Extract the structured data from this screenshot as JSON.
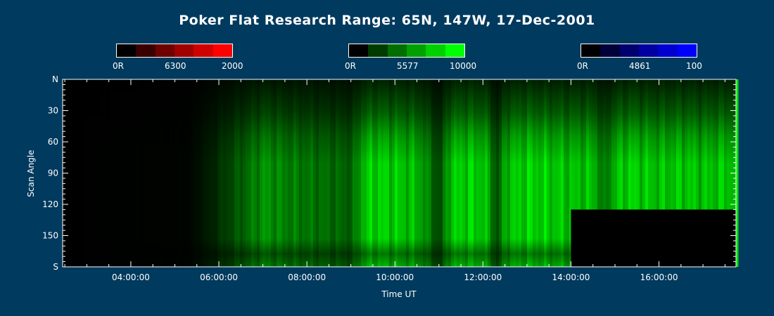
{
  "title": "Poker Flat Research Range: 65N, 147W, 17-Dec-2001",
  "colorbars": [
    {
      "name": "red",
      "wavelength": "6300",
      "min_label": "0R",
      "max_label": "2000",
      "colors": [
        "#000000",
        "#3a0000",
        "#6e0000",
        "#a00000",
        "#d00000",
        "#ff0000"
      ]
    },
    {
      "name": "green",
      "wavelength": "5577",
      "min_label": "0R",
      "max_label": "10000",
      "colors": [
        "#000000",
        "#003c00",
        "#006e00",
        "#00a000",
        "#00d000",
        "#00ff00"
      ]
    },
    {
      "name": "blue",
      "wavelength": "4861",
      "min_label": "0R",
      "max_label": "100",
      "colors": [
        "#000000",
        "#00003a",
        "#00006e",
        "#0000a0",
        "#0000d0",
        "#0000ff"
      ]
    }
  ],
  "chart_data": {
    "type": "heatmap",
    "title": "Poker Flat Research Range: 65N, 147W, 17-Dec-2001",
    "xlabel": "Time UT",
    "ylabel": "Scan Angle",
    "xlim_hours": [
      2.45,
      17.75
    ],
    "ylim": [
      0,
      180
    ],
    "y_reversed": true,
    "x_ticks": [
      "04:00:00",
      "06:00:00",
      "08:00:00",
      "10:00:00",
      "12:00:00",
      "14:00:00",
      "16:00:00"
    ],
    "x_tick_hours": [
      4,
      6,
      8,
      10,
      12,
      14,
      16
    ],
    "y_ticks": [
      "N",
      "30",
      "60",
      "90",
      "120",
      "150",
      "S"
    ],
    "y_tick_values": [
      0,
      30,
      60,
      90,
      120,
      150,
      180
    ],
    "green_intensity_profile": {
      "hours": [
        2.5,
        5.3,
        5.8,
        6.5,
        7.0,
        7.5,
        8.0,
        8.5,
        9.0,
        9.25,
        9.5,
        10.0,
        10.5,
        11.0,
        11.2,
        11.5,
        12.0,
        12.3,
        12.5,
        13.0,
        13.5,
        14.0,
        14.5,
        14.7,
        15.0,
        15.3,
        15.6,
        16.0,
        16.5,
        17.0,
        17.5,
        17.75
      ],
      "intensity": [
        0.0,
        0.02,
        0.15,
        0.45,
        0.7,
        0.6,
        0.55,
        0.5,
        0.45,
        0.9,
        1.0,
        0.95,
        0.85,
        0.3,
        0.9,
        1.0,
        0.95,
        0.35,
        0.9,
        1.0,
        0.95,
        0.9,
        0.9,
        0.5,
        0.9,
        1.0,
        0.95,
        0.9,
        0.95,
        0.9,
        0.95,
        0.9
      ]
    },
    "data_gap": {
      "start_hour": 14.0,
      "end_hour": 17.75,
      "start_angle": 125,
      "end_angle": 180
    }
  }
}
